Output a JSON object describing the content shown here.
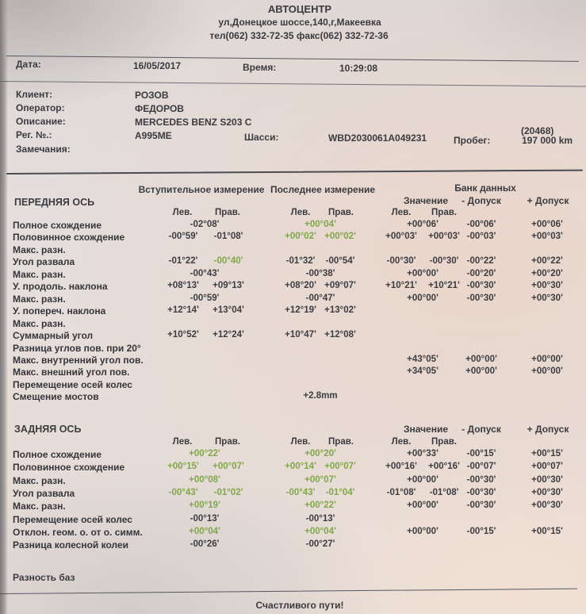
{
  "header": {
    "title": "АВТОЦЕНТР",
    "address": "ул,Донецкое шоссе,140,г,Макеевка",
    "phone_fax": "тел(062) 332-72-35   факс(062) 332-72-36"
  },
  "meta": {
    "date_label": "Дата:",
    "date": "16/05/2017",
    "time_label": "Время:",
    "time": "10:29:08"
  },
  "client": {
    "client_label": "Клиент:",
    "client": "РОЗОВ",
    "operator_label": "Оператор:",
    "operator": "ФЕДОРОВ",
    "description_label": "Описание:",
    "description": "MERCEDES BENZ S203 C",
    "description_code": "(20468)",
    "reg_label": "Рег. №.:",
    "reg": "A995ME",
    "chassis_label": "Шасси:",
    "chassis": "WBD2030061A049231",
    "mileage_label": "Пробег:",
    "mileage": "197 000 km",
    "notes_label": "Замечания:"
  },
  "columns": {
    "initial": "Вступительное измерение",
    "final": "Последнее измерение",
    "databank": "Банк данных",
    "value": "Значение",
    "minus_tol": "- Допуск",
    "plus_tol": "+ Допуск",
    "left": "Лев.",
    "right": "Прав."
  },
  "front": {
    "title": "ПЕРЕДНЯЯ ОСЬ",
    "rows": [
      {
        "label": "Полное схождение",
        "cells": [
          {
            "slot": "c1c",
            "text": "-02°08'"
          },
          {
            "slot": "c2c",
            "text": "+00°04'",
            "green": true
          },
          {
            "slot": "c3c",
            "text": "+00°06'"
          },
          {
            "slot": "c4",
            "text": "-00°06'"
          },
          {
            "slot": "c5",
            "text": "+00°06'"
          }
        ]
      },
      {
        "label": "Половинное схождение",
        "cells": [
          {
            "slot": "c1l",
            "text": "-00°59'"
          },
          {
            "slot": "c1r",
            "text": "-01°08'"
          },
          {
            "slot": "c2l",
            "text": "+00°02'",
            "green": true
          },
          {
            "slot": "c2r",
            "text": "+00°02'",
            "green": true
          },
          {
            "slot": "c3l",
            "text": "+00°03'"
          },
          {
            "slot": "c3r",
            "text": "+00°03'"
          },
          {
            "slot": "c4",
            "text": "-00°03'"
          },
          {
            "slot": "c5",
            "text": "+00°03'"
          }
        ]
      },
      {
        "label": "Макс. разн.",
        "cells": []
      },
      {
        "label": "Угол развала",
        "cells": [
          {
            "slot": "c1l",
            "text": "-01°22'"
          },
          {
            "slot": "c1r",
            "text": "-00°40'",
            "green": true
          },
          {
            "slot": "c2l",
            "text": "-01°32'"
          },
          {
            "slot": "c2r",
            "text": "-00°54'"
          },
          {
            "slot": "c3l",
            "text": "-00°30'"
          },
          {
            "slot": "c3r",
            "text": "-00°30'"
          },
          {
            "slot": "c4",
            "text": "-00°22'"
          },
          {
            "slot": "c5",
            "text": "+00°22'"
          }
        ]
      },
      {
        "label": "Макс. разн.",
        "cells": [
          {
            "slot": "c1c",
            "text": "-00°43'"
          },
          {
            "slot": "c2c",
            "text": "-00°38'"
          },
          {
            "slot": "c3c",
            "text": "+00°00'"
          },
          {
            "slot": "c4",
            "text": "-00°20'"
          },
          {
            "slot": "c5",
            "text": "+00°20'"
          }
        ]
      },
      {
        "label": "У. продоль. наклона",
        "cells": [
          {
            "slot": "c1l",
            "text": "+08°13'"
          },
          {
            "slot": "c1r",
            "text": "+09°13'"
          },
          {
            "slot": "c2l",
            "text": "+08°20'"
          },
          {
            "slot": "c2r",
            "text": "+09°07'"
          },
          {
            "slot": "c3l",
            "text": "+10°21'"
          },
          {
            "slot": "c3r",
            "text": "+10°21'"
          },
          {
            "slot": "c4",
            "text": "-00°30'"
          },
          {
            "slot": "c5",
            "text": "+00°30'"
          }
        ]
      },
      {
        "label": "Макс. разн.",
        "cells": [
          {
            "slot": "c1c",
            "text": "-00°59'"
          },
          {
            "slot": "c2c",
            "text": "-00°47'"
          },
          {
            "slot": "c3c",
            "text": "+00°00'"
          },
          {
            "slot": "c4",
            "text": "-00°30'"
          },
          {
            "slot": "c5",
            "text": "+00°30'"
          }
        ]
      },
      {
        "label": "У. попереч. наклона",
        "cells": [
          {
            "slot": "c1l",
            "text": "+12°14'"
          },
          {
            "slot": "c1r",
            "text": "+13°04'"
          },
          {
            "slot": "c2l",
            "text": "+12°19'"
          },
          {
            "slot": "c2r",
            "text": "+13°02'"
          }
        ]
      },
      {
        "label": "Макс. разн.",
        "cells": []
      },
      {
        "label": "Суммарный угол",
        "cells": [
          {
            "slot": "c1l",
            "text": "+10°52'"
          },
          {
            "slot": "c1r",
            "text": "+12°24'"
          },
          {
            "slot": "c2l",
            "text": "+10°47'"
          },
          {
            "slot": "c2r",
            "text": "+12°08'"
          }
        ]
      },
      {
        "label": "Разница углов пов. при 20°",
        "cells": []
      },
      {
        "label": "Макс. внутренний угол пов.",
        "cells": [
          {
            "slot": "c3c",
            "text": "+43°05'"
          },
          {
            "slot": "c4",
            "text": "+00°00'"
          },
          {
            "slot": "c5",
            "text": "+00°00'"
          }
        ]
      },
      {
        "label": "Макс. внешний угол пов.",
        "cells": [
          {
            "slot": "c3c",
            "text": "+34°05'"
          },
          {
            "slot": "c4",
            "text": "+00°00'"
          },
          {
            "slot": "c5",
            "text": "+00°00'"
          }
        ]
      },
      {
        "label": "Перемещение осей колес",
        "cells": []
      },
      {
        "label": "Смещение мостов",
        "cells": [
          {
            "slot": "c2c",
            "text": "+2.8mm"
          }
        ]
      }
    ]
  },
  "rear": {
    "title": "ЗАДНЯЯ ОСЬ",
    "rows": [
      {
        "label": "Полное схождение",
        "cells": [
          {
            "slot": "c1c",
            "text": "+00°22'",
            "green": true
          },
          {
            "slot": "c2c",
            "text": "+00°20'",
            "green": true
          },
          {
            "slot": "c3c",
            "text": "+00°33'"
          },
          {
            "slot": "c4",
            "text": "-00°15'"
          },
          {
            "slot": "c5",
            "text": "+00°15'"
          }
        ]
      },
      {
        "label": "Половинное схождение",
        "cells": [
          {
            "slot": "c1l",
            "text": "+00°15'",
            "green": true
          },
          {
            "slot": "c1r",
            "text": "+00°07'",
            "green": true
          },
          {
            "slot": "c2l",
            "text": "+00°14'",
            "green": true
          },
          {
            "slot": "c2r",
            "text": "+00°07'",
            "green": true
          },
          {
            "slot": "c3l",
            "text": "+00°16'"
          },
          {
            "slot": "c3r",
            "text": "+00°16'"
          },
          {
            "slot": "c4",
            "text": "-00°07'"
          },
          {
            "slot": "c5",
            "text": "+00°07'"
          }
        ]
      },
      {
        "label": "Макс. разн.",
        "cells": [
          {
            "slot": "c1c",
            "text": "+00°08'",
            "green": true
          },
          {
            "slot": "c2c",
            "text": "+00°07'",
            "green": true
          },
          {
            "slot": "c3c",
            "text": "+00°00'"
          },
          {
            "slot": "c4",
            "text": "-00°30'"
          },
          {
            "slot": "c5",
            "text": "+00°30'"
          }
        ]
      },
      {
        "label": "Угол развала",
        "cells": [
          {
            "slot": "c1l",
            "text": "-00°43'",
            "green": true
          },
          {
            "slot": "c1r",
            "text": "-01°02'",
            "green": true
          },
          {
            "slot": "c2l",
            "text": "-00°43'",
            "green": true
          },
          {
            "slot": "c2r",
            "text": "-01°04'",
            "green": true
          },
          {
            "slot": "c3l",
            "text": "-01°08'"
          },
          {
            "slot": "c3r",
            "text": "-01°08'"
          },
          {
            "slot": "c4",
            "text": "-00°30'"
          },
          {
            "slot": "c5",
            "text": "+00°30'"
          }
        ]
      },
      {
        "label": "Макс. разн.",
        "cells": [
          {
            "slot": "c1c",
            "text": "+00°19'",
            "green": true
          },
          {
            "slot": "c2c",
            "text": "+00°22'",
            "green": true
          },
          {
            "slot": "c3c",
            "text": "+00°00'"
          },
          {
            "slot": "c4",
            "text": "-00°30'"
          },
          {
            "slot": "c5",
            "text": "+00°30'"
          }
        ]
      },
      {
        "label": "Перемещение осей колес",
        "cells": [
          {
            "slot": "c1c",
            "text": "-00°13'"
          },
          {
            "slot": "c2c",
            "text": "-00°13'"
          }
        ]
      },
      {
        "label": "Отклон. геом. о. от о. симм.",
        "cells": [
          {
            "slot": "c1c",
            "text": "+00°04'",
            "green": true
          },
          {
            "slot": "c2c",
            "text": "+00°04'",
            "green": true
          },
          {
            "slot": "c3c",
            "text": "+00°00'"
          },
          {
            "slot": "c4",
            "text": "-00°15'"
          },
          {
            "slot": "c5",
            "text": "+00°15'"
          }
        ]
      },
      {
        "label": "Разница колесной колеи",
        "cells": [
          {
            "slot": "c1c",
            "text": "-00°26'"
          },
          {
            "slot": "c2c",
            "text": "-00°27'"
          }
        ]
      }
    ]
  },
  "footer": {
    "base_diff_label": "Разность баз",
    "farewell": "Счастливого пути!"
  },
  "colors": {
    "ok_green": "#7fa748",
    "text": "#3a3b40"
  }
}
